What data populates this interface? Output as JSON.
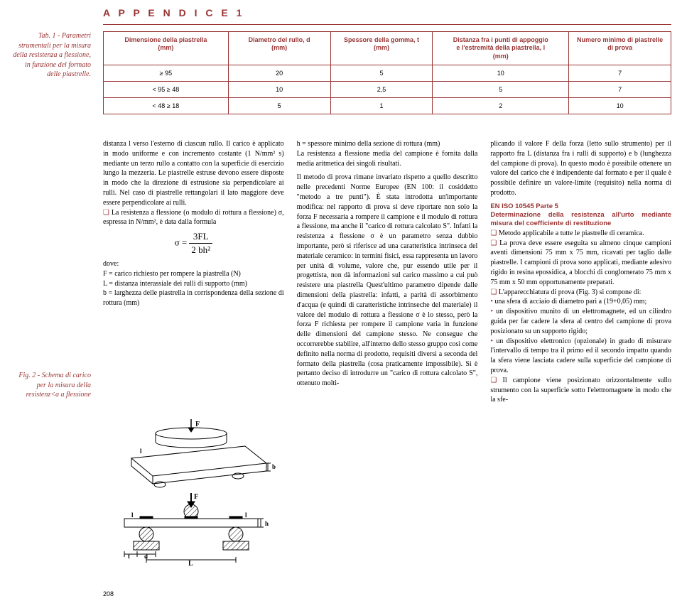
{
  "appendix_title": "A P P E N D I C E   1",
  "page_number": "208",
  "caption1": "Tab. 1 - Parametri strumentali per la misura della resistenza a flessione, in funzione del formato delle piastrelle.",
  "caption2": "Fig. 2 - Schema di carico per la misura della resistenz<a a flessione",
  "table": {
    "headers": [
      "Dimensione della piastrella\n(mm)",
      "Diametro del rullo, d\n(mm)",
      "Spessore della gomma, t\n(mm)",
      "Distanza fra i punti di appoggio\ne l'estremità della piastrella, l\n(mm)",
      "Numero minimo di piastrelle\ndi prova"
    ],
    "rows": [
      [
        "≥ 95",
        "20",
        "5",
        "10",
        "7"
      ],
      [
        "< 95 ≥ 48",
        "10",
        "2,5",
        "5",
        "7"
      ],
      [
        "< 48 ≥ 18",
        "5",
        "1",
        "2",
        "10"
      ]
    ],
    "col_widths": [
      "22%",
      "18%",
      "18%",
      "24%",
      "18%"
    ],
    "border_color": "#993333",
    "text_color": "#993333"
  },
  "col1": {
    "p1": "distanza l verso l'esterno di ciascun rullo. Il carico è applicato in modo uniforme e con incremento costante (1 N/mm² s) mediante un terzo rullo a contatto con la superficie di esercizio lungo la mezzeria. Le piastrelle estruse devono essere disposte in modo che la direzione di estrusione sia perpendicolare ai rulli. Nel caso di piastrelle rettangolari il lato maggiore deve essere perpendicolare ai rulli.",
    "p2a": "La resistenza a flessione (o modulo di rottura a flessione) σ, espressa in N/mm², è data dalla formula",
    "sigma": "σ =",
    "num": "3FL",
    "den": "2 bh²",
    "dove": "dove:",
    "Fdef": "F = carico richiesto per rompere la piastrella (N)",
    "Ldef": "L = distanza interassiale dei rulli di supporto (mm)",
    "bdef": "b = larghezza delle piastrella in corrispondenza della sezione di rottura (mm)"
  },
  "col2": {
    "p1": "h = spessore minimo della sezione di rottura (mm)",
    "p2": "La resistenza a flessione media del campione è fornita dalla media aritmetica dei singoli risultati.",
    "p3": "Il metodo di prova rimane invariato rispetto a quello descritto nelle precedenti Norme Europee (EN 100: il cosiddetto \"metodo a tre punti\"). È stata introdotta un'importante modifica: nel rapporto di prova si deve riportare non solo la forza F necessaria a rompere il campione e il modulo di rottura a flessione, ma anche il \"carico di rottura calcolato S\". Infatti la resistenza a flessione σ è un parametro senza dubbio importante, però si riferisce ad una caratteristica intrinseca del materiale ceramico: in termini fisici, essa rappresenta un lavoro per unità di volume, valore che, pur essendo utile per il progettista, non dà informazioni sul carico massimo a cui può resistere una piastrella Quest'ultimo parametro dipende dalle dimensioni della piastrella: infatti, a parità di assorbimento d'acqua (e quindi di caratteristiche intrinseche del materiale) il valore del modulo di rottura a flessione σ è lo stesso, però la forza F richiesta per rompere il campione varia in funzione delle dimensioni del campione stesso. Ne consegue che occorrerebbe stabilire, all'interno dello stesso gruppo così come definito nella norma di prodotto, requisiti diversi a seconda del formato della piastrella (cosa praticamente impossibile). Si è pertanto deciso di introdurre un \"carico di rottura calcolato S\", ottenuto molti-"
  },
  "col3": {
    "p1": "plicando il valore F della forza (letto sullo strumento) per il rapporto fra L (distanza fra i rulli di supporto) e b (lunghezza del campione di prova). In questo modo è possibile ottenere un valore del carico che è indipendente dal formato e per il quale è possibile definire un valore-limite (requisito) nella norma di prodotto.",
    "h1": "EN ISO 10545 Parte 5",
    "h2": "Determinazione della resistenza all'urto mediante misura del coefficiente di restituzione",
    "b1": "Metodo applicabile a tutte le piastrelle di ceramica.",
    "b2": "La prova deve essere eseguita su almeno cinque campioni aventi dimensioni 75 mm x 75 mm, ricavati per taglio dalle piastrelle. I campioni di prova sono applicati, mediante adesivo rigido in resina epossidica, a blocchi di conglomerato 75 mm x 75 mm x 50 mm opportunamente preparati.",
    "b3": "L'apparecchiatura di prova (Fig. 3) si compone di:",
    "d1": "una sfera di acciaio di diametro pari a (19+0,05) mm;",
    "d2": "un dispositivo munito di un elettromagnete, ed un cilindro guida per far cadere la sfera al centro del campione di prova posizionato su un supporto rigido;",
    "d3": "un dispositivo elettronico (opzionale) in grado di misurare l'intervallo di tempo tra il primo ed il secondo impatto quando la sfera viene lasciata cadere sulla superficie del campione di prova.",
    "b4": "Il campione viene posizionato orizzontalmente sullo strumento con la superficie sotto l'elettromagnete in modo che la sfe-"
  },
  "diagram": {
    "labels": {
      "F": "F",
      "b": "b",
      "l": "l",
      "t": "t",
      "d": "d",
      "L": "L",
      "h": "h"
    },
    "stroke": "#000",
    "hatch": "#000"
  },
  "colors": {
    "accent": "#993333",
    "text": "#000000",
    "bg": "#ffffff"
  }
}
